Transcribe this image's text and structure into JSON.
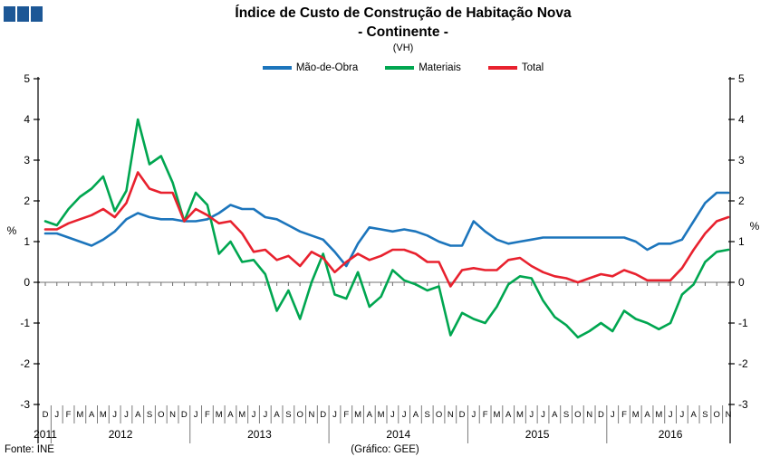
{
  "logo": {
    "color": "#1c5796"
  },
  "title": {
    "line1": "Índice de Custo de Construção de Habitação Nova",
    "line2": "- Continente -",
    "line3": "(VH)"
  },
  "legend": [
    {
      "label": "Mão-de-Obra",
      "color": "#1c75bc"
    },
    {
      "label": "Materiais",
      "color": "#00a650"
    },
    {
      "label": "Total",
      "color": "#e8212e"
    }
  ],
  "footer": {
    "left": "Fonte: INE",
    "center": "(Gráfico: GEE)"
  },
  "chart_data": {
    "type": "line",
    "title": "Índice de Custo de Construção de Habitação Nova - Continente - (VH)",
    "ylabel_left": "%",
    "ylabel_right": "%",
    "ylim": [
      -3,
      5
    ],
    "yticks": [
      5,
      4,
      3,
      2,
      1,
      0,
      -1,
      -2,
      -3
    ],
    "grid": "zero-line-only",
    "legend_position": "top-center",
    "months": [
      "D",
      "J",
      "F",
      "M",
      "A",
      "M",
      "J",
      "J",
      "A",
      "S",
      "O",
      "N",
      "D",
      "J",
      "F",
      "M",
      "A",
      "M",
      "J",
      "J",
      "A",
      "S",
      "O",
      "N",
      "D",
      "J",
      "F",
      "M",
      "A",
      "M",
      "J",
      "J",
      "A",
      "S",
      "O",
      "N",
      "D",
      "J",
      "F",
      "M",
      "A",
      "M",
      "J",
      "J",
      "A",
      "S",
      "O",
      "N",
      "D",
      "J",
      "F",
      "M",
      "A",
      "M",
      "J",
      "J",
      "A",
      "S",
      "O",
      "N"
    ],
    "years": [
      {
        "label": "2011",
        "from": 0,
        "to": 0
      },
      {
        "label": "2012",
        "from": 1,
        "to": 12
      },
      {
        "label": "2013",
        "from": 13,
        "to": 24
      },
      {
        "label": "2014",
        "from": 25,
        "to": 36
      },
      {
        "label": "2015",
        "from": 37,
        "to": 48
      },
      {
        "label": "2016",
        "from": 49,
        "to": 59
      }
    ],
    "series": [
      {
        "name": "Mão-de-Obra",
        "color": "#1c75bc",
        "values": [
          1.2,
          1.2,
          1.1,
          1.0,
          0.9,
          1.05,
          1.25,
          1.55,
          1.7,
          1.6,
          1.55,
          1.55,
          1.5,
          1.5,
          1.55,
          1.7,
          1.9,
          1.8,
          1.8,
          1.6,
          1.55,
          1.4,
          1.25,
          1.15,
          1.05,
          0.75,
          0.4,
          0.95,
          1.35,
          1.3,
          1.25,
          1.3,
          1.25,
          1.15,
          1.0,
          0.9,
          0.9,
          1.5,
          1.25,
          1.05,
          0.95,
          1.0,
          1.05,
          1.1,
          1.1,
          1.1,
          1.1,
          1.1,
          1.1,
          1.1,
          1.1,
          1.0,
          0.8,
          0.95,
          0.95,
          1.05,
          1.5,
          1.95,
          2.2,
          2.2
        ]
      },
      {
        "name": "Materiais",
        "color": "#00a650",
        "values": [
          1.5,
          1.4,
          1.8,
          2.1,
          2.3,
          2.6,
          1.75,
          2.25,
          4.0,
          2.9,
          3.1,
          2.45,
          1.5,
          2.2,
          1.9,
          0.7,
          1.0,
          0.5,
          0.55,
          0.2,
          -0.7,
          -0.2,
          -0.9,
          0.0,
          0.7,
          -0.3,
          -0.4,
          0.25,
          -0.6,
          -0.35,
          0.3,
          0.05,
          -0.05,
          -0.2,
          -0.1,
          -1.3,
          -0.75,
          -0.9,
          -1.0,
          -0.6,
          -0.05,
          0.15,
          0.1,
          -0.45,
          -0.85,
          -1.05,
          -1.35,
          -1.2,
          -1.0,
          -1.2,
          -0.7,
          -0.9,
          -1.0,
          -1.15,
          -1.0,
          -0.3,
          -0.05,
          0.5,
          0.75,
          0.8
        ]
      },
      {
        "name": "Total",
        "color": "#e8212e",
        "values": [
          1.3,
          1.3,
          1.45,
          1.55,
          1.65,
          1.8,
          1.6,
          1.95,
          2.7,
          2.3,
          2.2,
          2.2,
          1.5,
          1.8,
          1.65,
          1.45,
          1.5,
          1.2,
          0.75,
          0.8,
          0.55,
          0.65,
          0.4,
          0.75,
          0.6,
          0.25,
          0.5,
          0.7,
          0.55,
          0.65,
          0.8,
          0.8,
          0.7,
          0.5,
          0.5,
          -0.1,
          0.3,
          0.35,
          0.3,
          0.3,
          0.55,
          0.6,
          0.4,
          0.25,
          0.15,
          0.1,
          0.0,
          0.1,
          0.2,
          0.15,
          0.3,
          0.2,
          0.05,
          0.05,
          0.05,
          0.35,
          0.8,
          1.2,
          1.5,
          1.6
        ]
      }
    ]
  }
}
